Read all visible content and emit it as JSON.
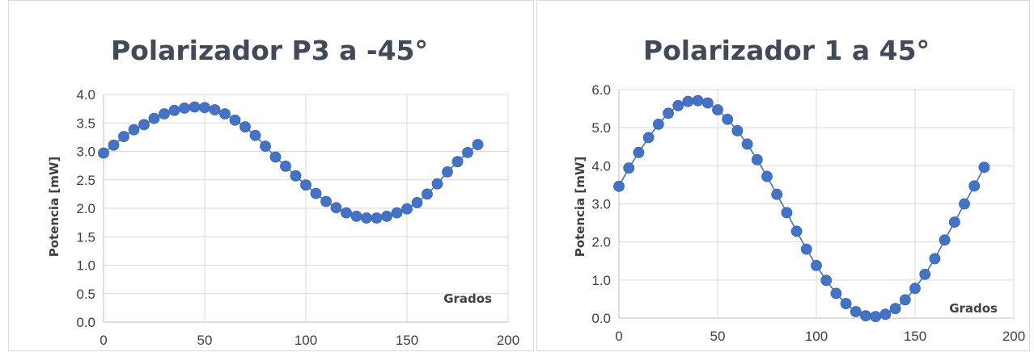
{
  "chart_data": [
    {
      "type": "scatter",
      "title": "Polarizador P3 a -45°",
      "xlabel": "Grados",
      "ylabel": "Potencia [mW]",
      "xlim": [
        0,
        200
      ],
      "ylim": [
        0,
        4.0
      ],
      "xticks": [
        0,
        50,
        100,
        150,
        200
      ],
      "yticks": [
        0.0,
        0.5,
        1.0,
        1.5,
        2.0,
        2.5,
        3.0,
        3.5,
        4.0
      ],
      "xtick_labels": [
        "0",
        "50",
        "100",
        "150",
        "200"
      ],
      "ytick_labels": [
        "0.0",
        "0.5",
        "1.0",
        "1.5",
        "2.0",
        "2.5",
        "3.0",
        "3.5",
        "4.0"
      ],
      "grid": true,
      "series": [
        {
          "x": [
            0,
            5,
            10,
            15,
            20,
            25,
            30,
            35,
            40,
            45,
            50,
            55,
            60,
            65,
            70,
            75,
            80,
            85,
            90,
            95,
            100,
            105,
            110,
            115,
            120,
            125,
            130,
            135,
            140,
            145,
            150,
            155,
            160,
            165,
            170,
            175,
            180,
            185
          ],
          "y": [
            2.97,
            3.11,
            3.26,
            3.38,
            3.47,
            3.58,
            3.66,
            3.72,
            3.76,
            3.78,
            3.77,
            3.73,
            3.66,
            3.55,
            3.43,
            3.28,
            3.09,
            2.9,
            2.74,
            2.57,
            2.41,
            2.26,
            2.12,
            2.01,
            1.92,
            1.86,
            1.83,
            1.83,
            1.86,
            1.92,
            1.99,
            2.1,
            2.25,
            2.43,
            2.64,
            2.82,
            2.98,
            3.12
          ]
        }
      ]
    },
    {
      "type": "scatter",
      "title": "Polarizador 1 a 45°",
      "xlabel": "Grados",
      "ylabel": "Potencia [mW]",
      "xlim": [
        0,
        200
      ],
      "ylim": [
        0,
        6.0
      ],
      "xticks": [
        0,
        50,
        100,
        150,
        200
      ],
      "yticks": [
        0.0,
        1.0,
        2.0,
        3.0,
        4.0,
        5.0,
        6.0
      ],
      "xtick_labels": [
        "0",
        "50",
        "100",
        "150",
        "200"
      ],
      "ytick_labels": [
        "0.0",
        "1.0",
        "2.0",
        "3.0",
        "4.0",
        "5.0",
        "6.0"
      ],
      "grid": true,
      "series": [
        {
          "x": [
            0,
            5,
            10,
            15,
            20,
            25,
            30,
            35,
            40,
            45,
            50,
            55,
            60,
            65,
            70,
            75,
            80,
            85,
            90,
            95,
            100,
            105,
            110,
            115,
            120,
            125,
            130,
            135,
            140,
            145,
            150,
            155,
            160,
            165,
            170,
            175,
            180,
            185
          ],
          "y": [
            3.46,
            3.94,
            4.35,
            4.74,
            5.09,
            5.38,
            5.58,
            5.69,
            5.71,
            5.65,
            5.47,
            5.22,
            4.92,
            4.57,
            4.16,
            3.72,
            3.25,
            2.77,
            2.28,
            1.81,
            1.38,
            0.99,
            0.65,
            0.38,
            0.17,
            0.06,
            0.04,
            0.1,
            0.25,
            0.48,
            0.78,
            1.15,
            1.56,
            2.05,
            2.52,
            3.0,
            3.47,
            3.96
          ]
        }
      ]
    }
  ]
}
